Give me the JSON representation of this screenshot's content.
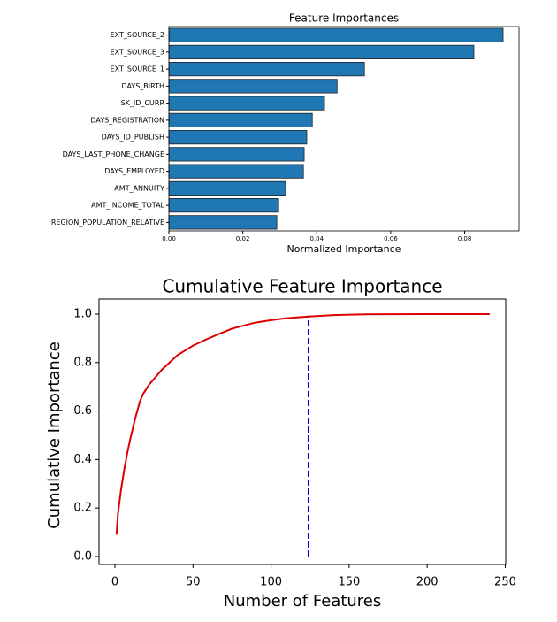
{
  "chart_data": [
    {
      "type": "barh",
      "title": "Feature Importances",
      "xlabel": "Normalized Importance",
      "categories": [
        "EXT_SOURCE_2",
        "EXT_SOURCE_3",
        "EXT_SOURCE_1",
        "DAYS_BIRTH",
        "SK_ID_CURR",
        "DAYS_REGISTRATION",
        "DAYS_ID_PUBLISH",
        "DAYS_LAST_PHONE_CHANGE",
        "DAYS_EMPLOYED",
        "AMT_ANNUITY",
        "AMT_INCOME_TOTAL",
        "REGION_POPULATION_RELATIVE"
      ],
      "values": [
        0.0904,
        0.0825,
        0.0529,
        0.0455,
        0.0421,
        0.0388,
        0.0373,
        0.0366,
        0.0364,
        0.0316,
        0.0297,
        0.0292
      ],
      "color": "#1f77b4",
      "xlim": [
        0,
        0.0947
      ],
      "xticks": [
        {
          "value": 0,
          "label": "0.00"
        },
        {
          "value": 0.02,
          "label": "0.02"
        },
        {
          "value": 0.04,
          "label": "0.04"
        },
        {
          "value": 0.06,
          "label": "0.06"
        },
        {
          "value": 0.08,
          "label": "0.08"
        }
      ]
    },
    {
      "type": "line",
      "title": "Cumulative Feature Importance",
      "xlabel": "Number of Features",
      "ylabel": "Cumulative Importance",
      "x": [
        1,
        2,
        4,
        6,
        8,
        10,
        13,
        16,
        18,
        22,
        30,
        40,
        50,
        60,
        75,
        90,
        100,
        110,
        124,
        140,
        160,
        200,
        240
      ],
      "series": [
        {
          "color": "#dd0000",
          "values": [
            0.09,
            0.18,
            0.28,
            0.36,
            0.43,
            0.49,
            0.57,
            0.64,
            0.67,
            0.71,
            0.77,
            0.83,
            0.87,
            0.9,
            0.94,
            0.965,
            0.975,
            0.983,
            0.99,
            0.996,
            0.999,
            1.0,
            1.0
          ]
        }
      ],
      "vlines": [
        {
          "x": 124,
          "ymin": 0,
          "ymax": 0.99,
          "color": "#0000cc",
          "style": "dashed"
        }
      ],
      "xlim": [
        -10.2,
        250.3
      ],
      "ylim": [
        -0.033,
        1.062
      ],
      "xticks": [
        0,
        50,
        100,
        150,
        200,
        250
      ],
      "yticks": [
        {
          "value": 0,
          "label": "0.0"
        },
        {
          "value": 0.2,
          "label": "0.2"
        },
        {
          "value": 0.4,
          "label": "0.4"
        },
        {
          "value": 0.6,
          "label": "0.6"
        },
        {
          "value": 0.8,
          "label": "0.8"
        },
        {
          "value": 1.0,
          "label": "1.0"
        }
      ]
    }
  ]
}
